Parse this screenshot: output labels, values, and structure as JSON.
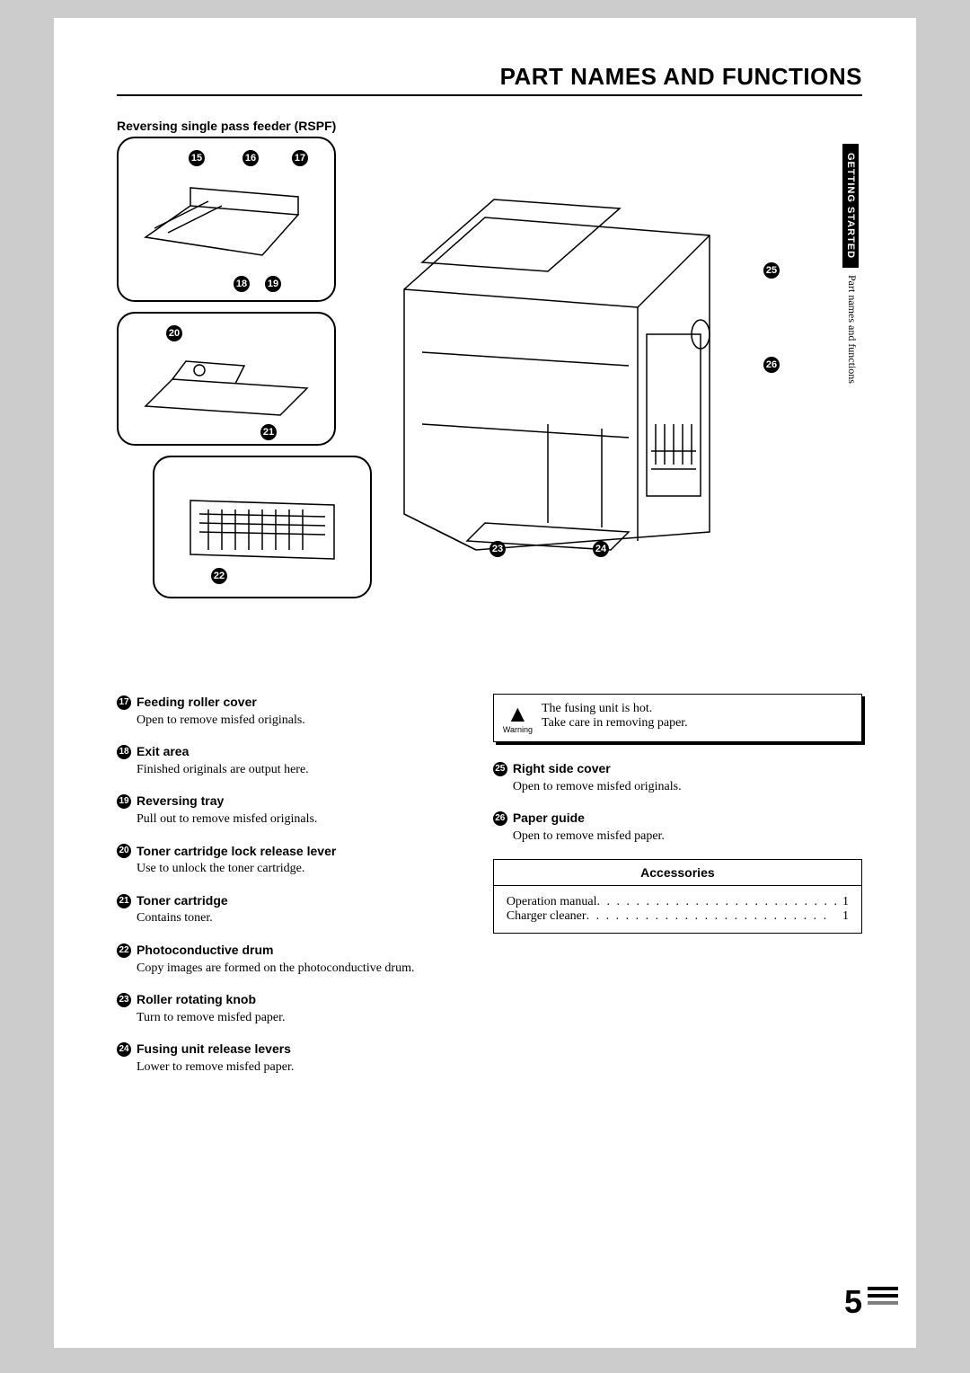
{
  "page_title": "PART NAMES AND FUNCTIONS",
  "subtitle": "Reversing single pass feeder (RSPF)",
  "side_tab": {
    "section": "GETTING STARTED",
    "sub": "Part names and functions"
  },
  "callouts_top": [
    "15",
    "16",
    "17",
    "18",
    "19",
    "20",
    "21",
    "22",
    "23",
    "24",
    "25",
    "26"
  ],
  "items_left": [
    {
      "num": "17",
      "title": "Feeding roller cover",
      "desc": "Open to remove misfed originals."
    },
    {
      "num": "18",
      "title": "Exit area",
      "desc": "Finished originals are output here."
    },
    {
      "num": "19",
      "title": "Reversing tray",
      "desc": "Pull out to remove misfed originals."
    },
    {
      "num": "20",
      "title": "Toner cartridge lock release lever",
      "desc": "Use to unlock the toner cartridge."
    },
    {
      "num": "21",
      "title": "Toner cartridge",
      "desc": "Contains toner."
    },
    {
      "num": "22",
      "title": "Photoconductive drum",
      "desc": "Copy images are formed on the photoconductive drum."
    },
    {
      "num": "23",
      "title": "Roller rotating knob",
      "desc": "Turn to remove misfed paper."
    },
    {
      "num": "24",
      "title": "Fusing unit release levers",
      "desc": "Lower to remove misfed paper."
    }
  ],
  "warning": {
    "label": "Warning",
    "line1": "The fusing unit is hot.",
    "line2": "Take care in removing paper."
  },
  "items_right": [
    {
      "num": "25",
      "title": "Right side cover",
      "desc": "Open to remove misfed originals."
    },
    {
      "num": "26",
      "title": "Paper guide",
      "desc": "Open to remove misfed paper."
    }
  ],
  "accessories": {
    "title": "Accessories",
    "rows": [
      {
        "label": "Operation manual",
        "value": "1"
      },
      {
        "label": "Charger cleaner",
        "value": "1"
      }
    ]
  },
  "page_number": "5"
}
